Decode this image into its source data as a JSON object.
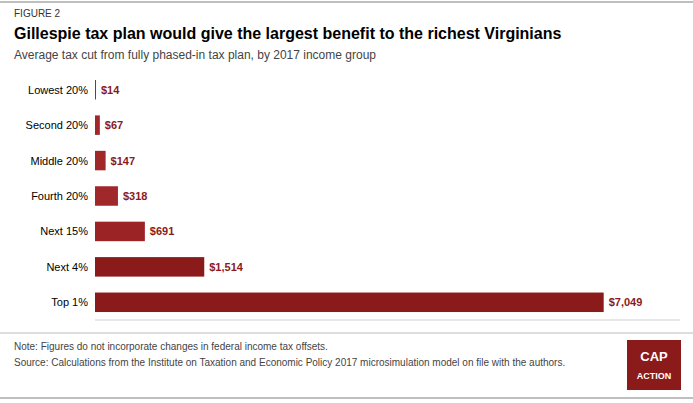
{
  "chart_data": {
    "type": "bar",
    "orientation": "horizontal",
    "title": "Gillespie tax plan would give the largest benefit to the richest Virginians",
    "subtitle": "Average tax cut from fully phased-in tax plan, by 2017 income group",
    "categories": [
      "Lowest 20%",
      "Second 20%",
      "Middle 20%",
      "Fourth 20%",
      "Next 15%",
      "Next 4%",
      "Top 1%"
    ],
    "values": [
      14,
      67,
      147,
      318,
      691,
      1514,
      7049
    ],
    "value_labels": [
      "$14",
      "$67",
      "$147",
      "$318",
      "$691",
      "$1,514",
      "$7,049"
    ],
    "colors": [
      "#A0272A",
      "#A0272A",
      "#A0272A",
      "#A0272A",
      "#9B2326",
      "#8B1A1A",
      "#8B1A1A"
    ],
    "xlim": [
      0,
      8106.35
    ],
    "data_labels": true,
    "tick_labels": "y",
    "grid": false,
    "annotations": [
      "FIGURE 2",
      "Note: Figures do not incorporate changes in federal income tax offsets.",
      "Source: Calculations from the Institute on Taxation and Economic Policy 2017 microsimulation model on file with the authors.",
      "CAP",
      "ACTION"
    ]
  }
}
